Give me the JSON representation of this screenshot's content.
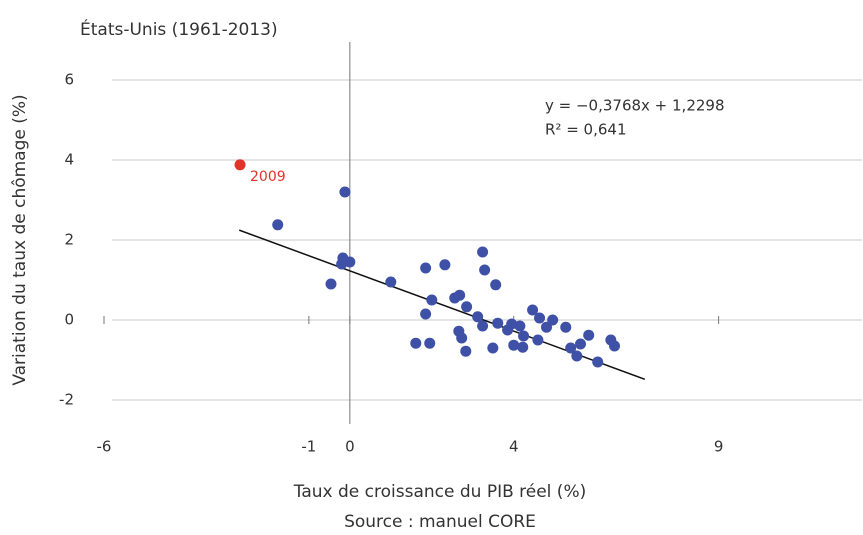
{
  "chart_data": {
    "type": "scatter",
    "title": "États-Unis (1961-2013)",
    "x_label": "Taux de croissance du PIB réel (%)",
    "y_label": "Variation du taux de chômage (%)",
    "source": "Source : manuel CORE",
    "color": "#3e51a6",
    "highlight": {
      "index": 0,
      "color": "#e2332a",
      "label": "2009"
    },
    "x": [
      -2.68,
      -1.76,
      -0.12,
      -0.17,
      -0.2,
      0.0,
      -0.46,
      1.0,
      1.85,
      2.32,
      3.24,
      3.29,
      3.56,
      2.0,
      1.85,
      1.61,
      1.95,
      2.56,
      2.68,
      2.85,
      3.12,
      3.24,
      2.66,
      2.73,
      2.83,
      3.49,
      3.61,
      3.85,
      3.95,
      4.0,
      4.15,
      4.24,
      4.46,
      4.63,
      4.59,
      4.8,
      4.95,
      5.27,
      5.39,
      5.54,
      5.63,
      5.83,
      6.05,
      6.37,
      6.46,
      4.22
    ],
    "y": [
      3.88,
      2.38,
      3.2,
      1.55,
      1.4,
      1.45,
      0.9,
      0.95,
      1.3,
      1.38,
      1.7,
      1.25,
      0.88,
      0.5,
      0.15,
      -0.58,
      -0.58,
      0.55,
      0.62,
      0.33,
      0.08,
      -0.15,
      -0.28,
      -0.45,
      -0.78,
      -0.7,
      -0.08,
      -0.25,
      -0.1,
      -0.63,
      -0.15,
      -0.4,
      0.25,
      0.05,
      -0.5,
      -0.18,
      0.0,
      -0.18,
      -0.7,
      -0.9,
      -0.6,
      -0.38,
      -1.05,
      -0.5,
      -0.65,
      -0.68
    ],
    "trendline": {
      "equation": "y = −0,3768x + 1,2298",
      "r2": "R² = 0,641",
      "slope": -0.3768,
      "intercept": 1.2298,
      "x_range": [
        -2.7,
        7.2
      ]
    },
    "xlim": [
      -6,
      12.5
    ],
    "ylim": [
      -2.6,
      7
    ],
    "xticks": [
      -6,
      -1,
      0,
      4,
      9
    ],
    "yticks": [
      -2,
      0,
      2,
      4,
      6
    ],
    "grid": true
  }
}
